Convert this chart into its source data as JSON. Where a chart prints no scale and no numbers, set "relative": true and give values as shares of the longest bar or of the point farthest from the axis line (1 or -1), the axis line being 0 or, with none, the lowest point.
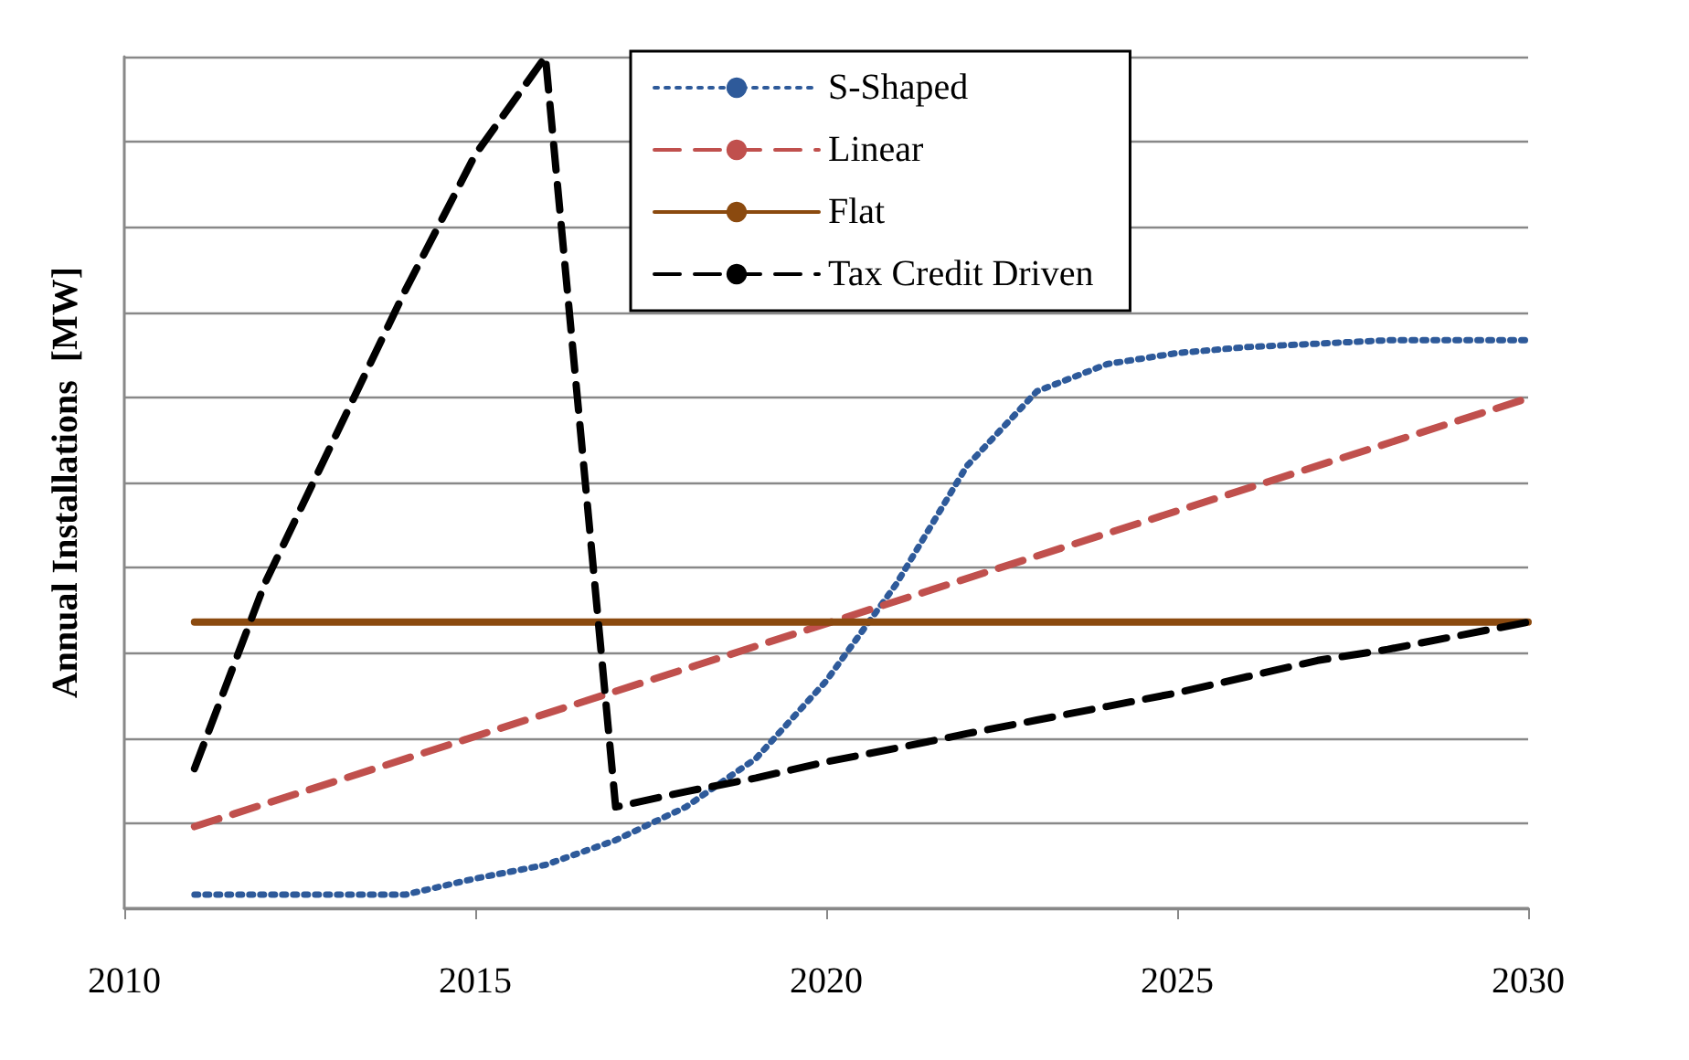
{
  "chart_data": {
    "type": "line",
    "relative": true,
    "ylabel": "Annual Installations  [MW]",
    "xlim": [
      2010,
      2030
    ],
    "xticks": [
      2010,
      2015,
      2020,
      2025,
      2030
    ],
    "grid": "y",
    "legend": "top",
    "marker": "none",
    "series": [
      {
        "name": "S-Shaped",
        "color": "#2e5a9a",
        "line_style": "dotted",
        "x": [
          2011,
          2012,
          2013,
          2014,
          2015,
          2016,
          2017,
          2018,
          2019,
          2020,
          2021,
          2022,
          2023,
          2024,
          2025,
          2026,
          2027,
          2028,
          2029,
          2030
        ],
        "values": [
          0.016,
          0.016,
          0.016,
          0.016,
          0.035,
          0.051,
          0.08,
          0.119,
          0.176,
          0.267,
          0.381,
          0.519,
          0.607,
          0.639,
          0.652,
          0.659,
          0.663,
          0.667,
          0.667,
          0.667
        ]
      },
      {
        "name": "Linear",
        "color": "#c0504d",
        "line_style": "dashed",
        "x": [
          2011,
          2030
        ],
        "values": [
          0.096,
          0.599
        ]
      },
      {
        "name": "Flat",
        "color": "#8b4a0f",
        "line_style": "solid",
        "x": [
          2011,
          2030
        ],
        "values": [
          0.336,
          0.336
        ]
      },
      {
        "name": "Tax Credit Driven",
        "color": "#000000",
        "line_style": "dashed",
        "x": [
          2011,
          2012,
          2013,
          2014,
          2015,
          2016,
          2017,
          2018,
          2019,
          2020,
          2021,
          2022,
          2023,
          2024,
          2025,
          2026,
          2027,
          2028,
          2029,
          2030
        ],
        "values": [
          0.164,
          0.381,
          0.553,
          0.725,
          0.885,
          1,
          0.119,
          0.137,
          0.153,
          0.172,
          0.188,
          0.205,
          0.221,
          0.237,
          0.253,
          0.272,
          0.291,
          0.304,
          0.32,
          0.336
        ]
      }
    ]
  }
}
